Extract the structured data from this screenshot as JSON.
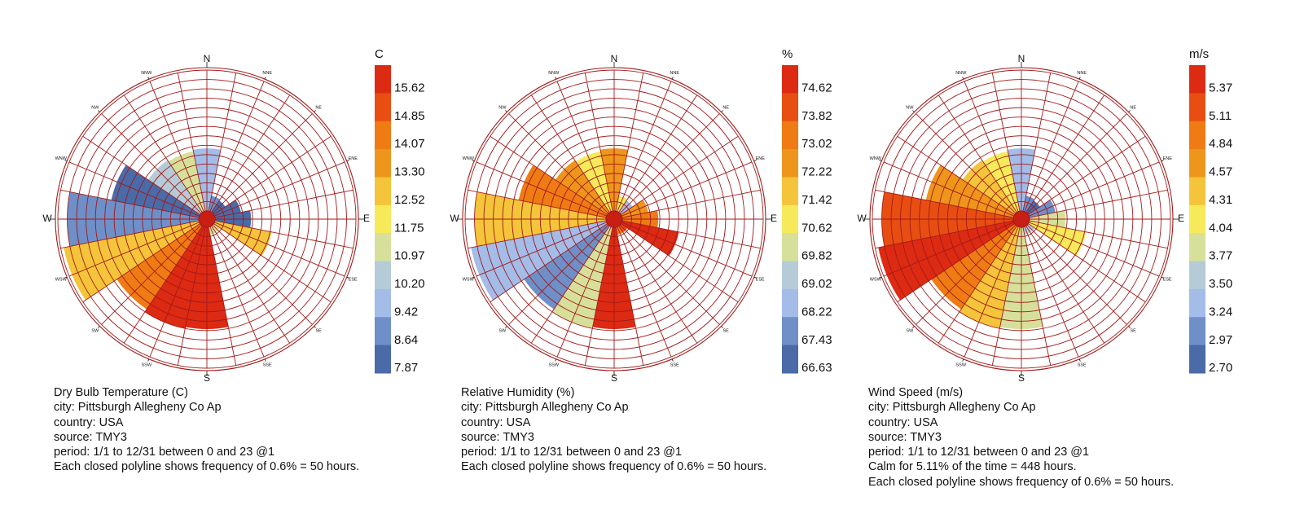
{
  "chart_data": [
    {
      "type": "wind-rose",
      "title": "Dry Bulb Temperature (C)",
      "unit": "C",
      "info_lines": [
        "city: Pittsburgh Allegheny Co Ap",
        "country: USA",
        "source: TMY3",
        "period: 1/1 to 12/31 between 0 and 23 @1",
        "Each closed polyline shows frequency of 0.6% = 50 hours."
      ],
      "directions": [
        "N",
        "NNE",
        "NE",
        "ENE",
        "E",
        "ESE",
        "SE",
        "SSE",
        "S",
        "SSW",
        "SW",
        "WSW",
        "W",
        "WNW",
        "NW",
        "NNW"
      ],
      "frequency_pct": [
        4.0,
        1.0,
        0.9,
        1.7,
        2.3,
        3.7,
        0.5,
        0.5,
        6.5,
        6.6,
        6.4,
        8.8,
        8.4,
        5.7,
        4.0,
        3.9
      ],
      "mean_value": [
        9.42,
        8.64,
        7.87,
        7.87,
        7.87,
        12.52,
        10.97,
        10.97,
        15.62,
        15.62,
        14.07,
        12.52,
        8.64,
        7.87,
        10.2,
        10.97
      ],
      "legend_ticks": [
        "15.62",
        "14.85",
        "14.07",
        "13.30",
        "12.52",
        "11.75",
        "10.97",
        "10.20",
        "9.42",
        "8.64",
        "7.87"
      ]
    },
    {
      "type": "wind-rose",
      "title": "Relative Humidity (%)",
      "unit": "%",
      "info_lines": [
        "city: Pittsburgh Allegheny Co Ap",
        "country: USA",
        "source: TMY3",
        "period: 1/1 to 12/31 between 0 and 23 @1",
        "Each closed polyline shows frequency of 0.6% = 50 hours."
      ],
      "directions": [
        "N",
        "NNE",
        "NE",
        "ENE",
        "E",
        "ESE",
        "SE",
        "SSE",
        "S",
        "SSW",
        "SW",
        "WSW",
        "W",
        "WNW",
        "NW",
        "NNW"
      ],
      "frequency_pct": [
        4.0,
        1.0,
        0.9,
        1.7,
        2.3,
        3.7,
        0.5,
        0.5,
        6.5,
        6.6,
        6.4,
        8.8,
        8.4,
        5.7,
        4.0,
        3.9
      ],
      "mean_value": [
        72.22,
        70.62,
        68.22,
        72.22,
        73.02,
        74.62,
        73.82,
        73.02,
        74.62,
        69.82,
        67.43,
        68.22,
        71.42,
        73.02,
        72.22,
        70.62
      ],
      "legend_ticks": [
        "74.62",
        "73.82",
        "73.02",
        "72.22",
        "71.42",
        "70.62",
        "69.82",
        "69.02",
        "68.22",
        "67.43",
        "66.63"
      ]
    },
    {
      "type": "wind-rose",
      "title": "Wind Speed (m/s)",
      "unit": "m/s",
      "info_lines": [
        "city: Pittsburgh Allegheny Co Ap",
        "country: USA",
        "source: TMY3",
        "period: 1/1 to 12/31 between 0 and 23 @1",
        "Calm for 5.11% of the time = 448 hours.",
        "Each closed polyline shows frequency of 0.6% = 50 hours."
      ],
      "directions": [
        "N",
        "NNE",
        "NE",
        "ENE",
        "E",
        "ESE",
        "SE",
        "SSE",
        "S",
        "SSW",
        "SW",
        "WSW",
        "W",
        "WNW",
        "NW",
        "NNW"
      ],
      "frequency_pct": [
        4.0,
        1.0,
        0.9,
        1.7,
        2.3,
        3.7,
        0.5,
        0.5,
        6.5,
        6.6,
        6.4,
        8.8,
        8.4,
        5.7,
        4.0,
        3.9
      ],
      "mean_value": [
        3.24,
        2.97,
        2.7,
        2.97,
        3.77,
        4.04,
        3.5,
        3.5,
        3.77,
        4.31,
        4.84,
        5.37,
        5.11,
        4.57,
        4.31,
        4.04
      ],
      "legend_ticks": [
        "5.37",
        "5.11",
        "4.84",
        "4.57",
        "4.31",
        "4.04",
        "3.77",
        "3.50",
        "3.24",
        "2.97",
        "2.70"
      ]
    }
  ],
  "palette": [
    "#4a6aa8",
    "#6e8fc8",
    "#a3bce8",
    "#b6cbd8",
    "#d7e09a",
    "#f7ea5a",
    "#f4c43a",
    "#ee951c",
    "#ef7b14",
    "#e84e12",
    "#dd2a12"
  ],
  "grid_color": "#a11a1a",
  "ring_step_pct": 0.6,
  "ring_count": 15
}
